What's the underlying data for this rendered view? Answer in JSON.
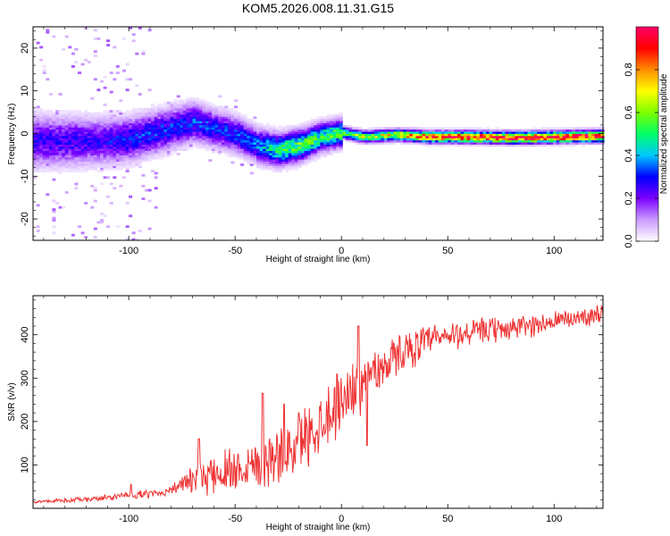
{
  "figure": {
    "title": "KOM5.2026.008.11.31.G15"
  },
  "chart_data": [
    {
      "type": "heatmap",
      "name": "spectrogram",
      "xlabel": "Height of straight line (km)",
      "ylabel": "Frequency (Hz)",
      "xlim": [
        -145,
        123
      ],
      "ylim": [
        -25,
        25
      ],
      "xticks": [
        -100,
        -50,
        0,
        50,
        100
      ],
      "yticks": [
        -20,
        -10,
        0,
        10,
        20
      ],
      "colorbar": {
        "label": "Normalized spectral amplitude",
        "range": [
          0,
          1
        ],
        "ticks": [
          "0.0",
          "0.2",
          "0.4",
          "0.6",
          "0.8"
        ],
        "tick_values": [
          0.0,
          0.2,
          0.4,
          0.6,
          0.8
        ],
        "colormap": [
          "#ffffff",
          "#ca9bff",
          "#7a00ff",
          "#0000ff",
          "#00c8ff",
          "#00ff66",
          "#7cff00",
          "#ffff00",
          "#ff8c00",
          "#ff0000",
          "#ff0066"
        ]
      },
      "ridge": [
        {
          "x": -115,
          "f": -2,
          "a": 0.25
        },
        {
          "x": -100,
          "f": -1.5,
          "a": 0.3
        },
        {
          "x": -85,
          "f": 0.5,
          "a": 0.3
        },
        {
          "x": -70,
          "f": 2.5,
          "a": 0.32
        },
        {
          "x": -60,
          "f": 1.0,
          "a": 0.3
        },
        {
          "x": -50,
          "f": -0.5,
          "a": 0.32
        },
        {
          "x": -40,
          "f": -3.0,
          "a": 0.35
        },
        {
          "x": -30,
          "f": -4.0,
          "a": 0.5
        },
        {
          "x": -20,
          "f": -3.0,
          "a": 0.55
        },
        {
          "x": -10,
          "f": -1.0,
          "a": 0.5
        },
        {
          "x": 0,
          "f": 0.0,
          "a": 0.55
        },
        {
          "x": 10,
          "f": -1.0,
          "a": 0.6
        },
        {
          "x": 25,
          "f": -0.5,
          "a": 0.7
        },
        {
          "x": 40,
          "f": -1.0,
          "a": 0.85
        },
        {
          "x": 60,
          "f": -1.0,
          "a": 0.95
        },
        {
          "x": 80,
          "f": -1.2,
          "a": 0.95
        },
        {
          "x": 100,
          "f": -1.0,
          "a": 0.95
        },
        {
          "x": 123,
          "f": -0.8,
          "a": 0.95
        }
      ]
    },
    {
      "type": "line",
      "name": "snr",
      "xlabel": "Height of straight line (km)",
      "ylabel": "SNR (v/v)",
      "xlim": [
        -145,
        123
      ],
      "ylim": [
        0,
        490
      ],
      "xticks": [
        -100,
        -50,
        0,
        50,
        100
      ],
      "yticks": [
        100,
        200,
        300,
        400
      ],
      "color": "#ee3333",
      "trend": [
        {
          "x": -145,
          "y": 15
        },
        {
          "x": -120,
          "y": 20
        },
        {
          "x": -100,
          "y": 30
        },
        {
          "x": -85,
          "y": 35
        },
        {
          "x": -75,
          "y": 55
        },
        {
          "x": -60,
          "y": 80
        },
        {
          "x": -45,
          "y": 100
        },
        {
          "x": -30,
          "y": 120
        },
        {
          "x": -20,
          "y": 150
        },
        {
          "x": -10,
          "y": 200
        },
        {
          "x": 0,
          "y": 250
        },
        {
          "x": 10,
          "y": 290
        },
        {
          "x": 20,
          "y": 330
        },
        {
          "x": 30,
          "y": 365
        },
        {
          "x": 45,
          "y": 390
        },
        {
          "x": 60,
          "y": 405
        },
        {
          "x": 80,
          "y": 415
        },
        {
          "x": 100,
          "y": 430
        },
        {
          "x": 123,
          "y": 450
        }
      ],
      "noise": [
        {
          "x": -145,
          "amp": 4
        },
        {
          "x": -80,
          "amp": 12
        },
        {
          "x": -60,
          "amp": 60
        },
        {
          "x": -30,
          "amp": 80
        },
        {
          "x": 0,
          "amp": 90
        },
        {
          "x": 20,
          "amp": 60
        },
        {
          "x": 50,
          "amp": 40
        },
        {
          "x": 123,
          "amp": 25
        }
      ],
      "spikes": [
        {
          "x": -99,
          "y": 55
        },
        {
          "x": -67,
          "y": 160
        },
        {
          "x": -37,
          "y": 265
        },
        {
          "x": -27,
          "y": 240
        },
        {
          "x": -20,
          "y": 220
        },
        {
          "x": 8,
          "y": 420
        },
        {
          "x": 15,
          "y": 340
        },
        {
          "x": 12,
          "y": 145
        }
      ]
    }
  ]
}
